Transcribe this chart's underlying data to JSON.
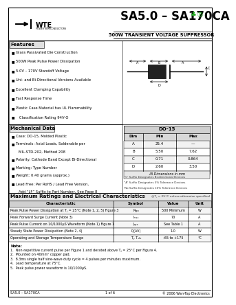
{
  "title_main": "SA5.0 – SA170CA",
  "title_sub": "500W TRANSIENT VOLTAGE SUPPRESSOR",
  "company": "WTE",
  "company_sub": "POWER SEMICONDUCTORS",
  "features_title": "Features",
  "features": [
    "Glass Passivated Die Construction",
    "500W Peak Pulse Power Dissipation",
    "5.0V – 170V Standoff Voltage",
    "Uni- and Bi-Directional Versions Available",
    "Excellent Clamping Capability",
    "Fast Response Time",
    "Plastic Case Material has UL Flammability",
    "   Classification Rating 94V-O"
  ],
  "mech_title": "Mechanical Data",
  "mech_items": [
    "Case: DO-15, Molded Plastic",
    "Terminals: Axial Leads, Solderable per",
    "   MIL-STD-202, Method 208",
    "Polarity: Cathode Band Except Bi-Directional",
    "Marking: Type Number",
    "Weight: 0.40 grams (approx.)",
    "Lead Free: Per RoHS / Lead Free Version,",
    "   Add “LF” Suffix to Part Number, See Page 8"
  ],
  "dim_table_title": "DO-15",
  "dim_headers": [
    "Dim",
    "Min",
    "Max"
  ],
  "dim_rows": [
    [
      "A",
      "25.4",
      "—"
    ],
    [
      "B",
      "5.50",
      "7.62"
    ],
    [
      "C",
      "0.71",
      "0.864"
    ],
    [
      "D",
      "2.60",
      "3.50"
    ]
  ],
  "dim_note": "All Dimensions in mm",
  "suffix_notes": [
    "'C' Suffix Designates Bi-directional Devices",
    "'A' Suffix Designates 5% Tolerance Devices",
    "No Suffix Designates 10% Tolerance Devices"
  ],
  "max_ratings_title": "Maximum Ratings and Electrical Characteristics",
  "max_ratings_sub": "@T⁁ = 25°C unless otherwise specified",
  "table_headers": [
    "Characteristic",
    "Symbol",
    "Value",
    "Unit"
  ],
  "table_rows": [
    [
      "Peak Pulse Power Dissipation at T⁁ = 25°C (Note 1, 2, 5) Figure 3",
      "Pₚₚₓ",
      "500 Minimum",
      "W"
    ],
    [
      "Peak Forward Surge Current (Note 3)",
      "Iₘₛₓ",
      "70",
      "A"
    ],
    [
      "Peak Pulse Current on 10/1000μS Waveform (Note 1) Figure 1",
      "Iₚₚₓ",
      "See Table 1",
      "A"
    ],
    [
      "Steady State Power Dissipation (Note 2, 4)",
      "P⁁(AV)",
      "1.0",
      "W"
    ],
    [
      "Operating and Storage Temperature Range",
      "T⁁, Tₛₜₒ",
      "-65 to +175",
      "°C"
    ]
  ],
  "notes_title": "Note:",
  "notes": [
    "1.  Non-repetitive current pulse per Figure 1 and derated above T⁁ = 25°C per Figure 4.",
    "2.  Mounted on 40mm² copper pad.",
    "3.  8.3ms single half sine-wave duty cycle = 4 pulses per minutes maximum.",
    "4.  Lead temperature at 75°C.",
    "5.  Peak pulse power waveform is 10/1000μS."
  ],
  "footer_left": "SA5.0 – SA170CA",
  "footer_center": "1 of 6",
  "footer_right": "© 2006 Wan-Top Electronics",
  "bg_color": "#ffffff"
}
